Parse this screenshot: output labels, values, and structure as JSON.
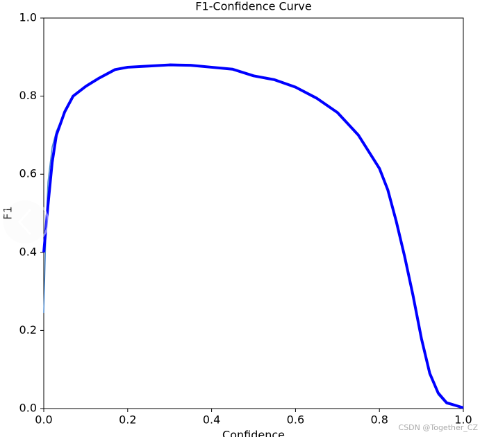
{
  "chart_data": {
    "type": "line",
    "title": "F1-Confidence Curve",
    "x_label": "Confidence",
    "y_label": "F1",
    "watermark": "CSDN @Together_CZ",
    "x": [
      0,
      0.005,
      0.01,
      0.02,
      0.03,
      0.05,
      0.07,
      0.1,
      0.13,
      0.17,
      0.2,
      0.25,
      0.3,
      0.35,
      0.4,
      0.45,
      0.5,
      0.55,
      0.6,
      0.65,
      0.7,
      0.75,
      0.8,
      0.82,
      0.84,
      0.86,
      0.88,
      0.9,
      0.92,
      0.94,
      0.96,
      1.0
    ],
    "series": [
      {
        "color": "#4a8ad0",
        "width": 1.5,
        "values": [
          0.245,
          0.45,
          0.58,
          0.67,
          0.71,
          0.76,
          0.8,
          0.825,
          0.845,
          0.868,
          0.874,
          0.877,
          0.88,
          0.879,
          0.874,
          0.869,
          0.852,
          0.842,
          0.823,
          0.795,
          0.758,
          0.7,
          0.615,
          0.56,
          0.48,
          0.39,
          0.29,
          0.18,
          0.09,
          0.035,
          0.012,
          0.002
        ]
      },
      {
        "color": "#0000ff",
        "width": 4,
        "values": [
          0.4,
          0.46,
          0.52,
          0.63,
          0.7,
          0.76,
          0.8,
          0.825,
          0.845,
          0.868,
          0.874,
          0.877,
          0.88,
          0.879,
          0.874,
          0.869,
          0.852,
          0.842,
          0.823,
          0.795,
          0.758,
          0.7,
          0.615,
          0.56,
          0.48,
          0.39,
          0.29,
          0.18,
          0.09,
          0.04,
          0.015,
          0.002
        ]
      }
    ],
    "xlim": [
      0,
      1
    ],
    "ylim": [
      0,
      1
    ],
    "xticks": [
      {
        "value": 0,
        "label": "0.0"
      },
      0.2,
      0.4,
      0.6,
      0.8,
      {
        "value": 1,
        "label": "1.0"
      }
    ],
    "yticks": [
      {
        "value": 0,
        "label": "0.0"
      },
      0.2,
      0.4,
      0.6,
      0.8,
      {
        "value": 1,
        "label": "1.0"
      }
    ],
    "grid": false
  }
}
